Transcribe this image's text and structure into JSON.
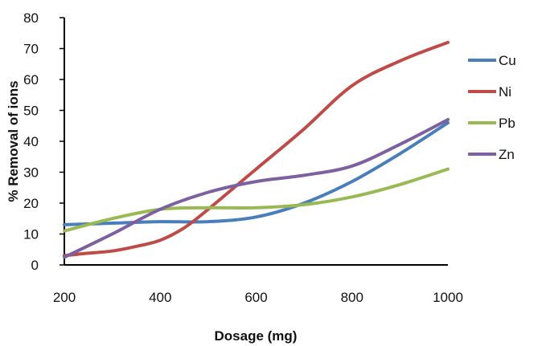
{
  "chart_data": {
    "type": "line",
    "title": "",
    "xlabel": "Dosage (mg)",
    "ylabel": "% Removal of ions",
    "xlim": [
      200,
      1000
    ],
    "ylim": [
      0,
      80
    ],
    "x_ticks": [
      200,
      400,
      600,
      800,
      1000
    ],
    "y_ticks": [
      0,
      10,
      20,
      30,
      40,
      50,
      60,
      70,
      80
    ],
    "grid": false,
    "legend_position": "right",
    "series": [
      {
        "name": "Cu",
        "color": "#4a7ebb",
        "points": [
          [
            200,
            13.0
          ],
          [
            300,
            13.5
          ],
          [
            400,
            14.0
          ],
          [
            500,
            14.0
          ],
          [
            600,
            15.5
          ],
          [
            700,
            20.0
          ],
          [
            800,
            27.0
          ],
          [
            900,
            36.0
          ],
          [
            1000,
            46.0
          ]
        ]
      },
      {
        "name": "Ni",
        "color": "#be4b48",
        "points": [
          [
            200,
            3.0
          ],
          [
            250,
            3.8
          ],
          [
            300,
            4.5
          ],
          [
            350,
            6.0
          ],
          [
            400,
            8.0
          ],
          [
            450,
            12.0
          ],
          [
            500,
            18.0
          ],
          [
            600,
            31.0
          ],
          [
            700,
            44.0
          ],
          [
            800,
            58.0
          ],
          [
            900,
            66.0
          ],
          [
            1000,
            72.0
          ]
        ]
      },
      {
        "name": "Pb",
        "color": "#98b954",
        "points": [
          [
            200,
            11.0
          ],
          [
            300,
            15.0
          ],
          [
            400,
            18.0
          ],
          [
            500,
            18.5
          ],
          [
            600,
            18.5
          ],
          [
            700,
            19.5
          ],
          [
            800,
            22.0
          ],
          [
            900,
            26.0
          ],
          [
            1000,
            31.0
          ]
        ]
      },
      {
        "name": "Zn",
        "color": "#7d60a0",
        "points": [
          [
            200,
            2.5
          ],
          [
            300,
            10.0
          ],
          [
            400,
            18.0
          ],
          [
            500,
            23.5
          ],
          [
            600,
            27.0
          ],
          [
            700,
            29.0
          ],
          [
            800,
            32.0
          ],
          [
            900,
            39.0
          ],
          [
            1000,
            47.0
          ]
        ]
      }
    ]
  }
}
